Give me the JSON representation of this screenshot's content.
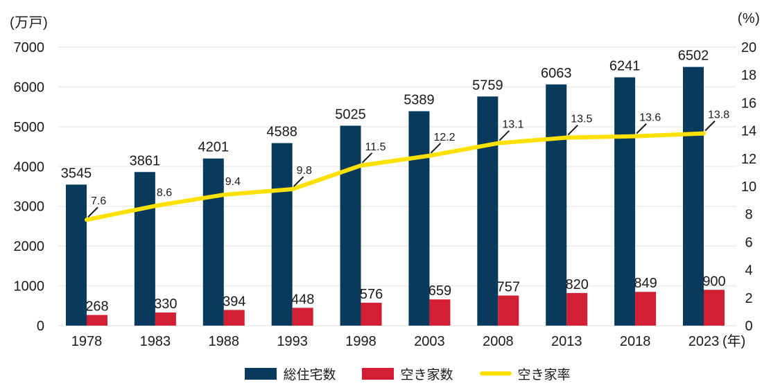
{
  "chart_data": {
    "type": "bar",
    "subtype": "grouped-bar-with-line",
    "title": "",
    "categories": [
      "1978",
      "1983",
      "1988",
      "1993",
      "1998",
      "2003",
      "2008",
      "2013",
      "2018",
      "2023"
    ],
    "x_axis_suffix": "(年)",
    "series": [
      {
        "name": "総住宅数",
        "type": "bar",
        "axis": "left",
        "color": "#083A5D",
        "values": [
          3545,
          3861,
          4201,
          4588,
          5025,
          5389,
          5759,
          6063,
          6241,
          6502
        ]
      },
      {
        "name": "空き家数",
        "type": "bar",
        "axis": "left",
        "color": "#D21F34",
        "values": [
          268,
          330,
          394,
          448,
          576,
          659,
          757,
          820,
          849,
          900
        ]
      },
      {
        "name": "空き家率",
        "type": "line",
        "axis": "right",
        "color": "#FFE100",
        "values": [
          7.6,
          8.6,
          9.4,
          9.8,
          11.5,
          12.2,
          13.1,
          13.5,
          13.6,
          13.8
        ]
      }
    ],
    "left_axis": {
      "title": "(万戸)",
      "min": 0,
      "max": 7000,
      "step": 1000
    },
    "right_axis": {
      "title": "(%)",
      "min": 0,
      "max": 20,
      "step": 2
    },
    "grid": true,
    "legend_position": "bottom",
    "colors": {
      "text": "#1A1A1A",
      "gridline": "#F1EFE9",
      "background": "#FFFFFF",
      "callout": "#1A1A1A"
    }
  }
}
